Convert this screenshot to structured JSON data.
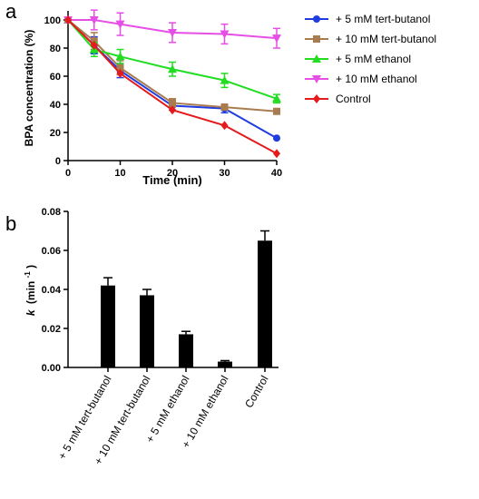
{
  "panels": {
    "a_label": "a",
    "b_label": "b"
  },
  "chart_data": [
    {
      "type": "line",
      "panel": "a",
      "xlabel": "Time (min)",
      "ylabel": "BPA concentration (%)",
      "xlim": [
        0,
        40
      ],
      "ylim": [
        0,
        100
      ],
      "xticks": [
        0,
        10,
        20,
        30,
        40
      ],
      "yticks": [
        0,
        20,
        40,
        60,
        80,
        100
      ],
      "x": [
        0,
        5,
        10,
        20,
        30,
        40
      ],
      "legend_position": "right",
      "series": [
        {
          "name": "+ 5 mM tert-butanol",
          "color": "#1f3de0",
          "marker": "circle",
          "values": [
            100,
            82,
            64,
            39,
            37,
            16
          ],
          "errors": [
            0,
            6,
            5,
            3,
            3,
            0
          ]
        },
        {
          "name": "+ 10 mM tert-butanol",
          "color": "#a97c50",
          "marker": "square",
          "values": [
            100,
            85,
            66,
            41,
            38,
            35
          ],
          "errors": [
            0,
            6,
            5,
            3,
            2,
            0
          ]
        },
        {
          "name": "+ 5 mM ethanol",
          "color": "#22dd22",
          "marker": "triangle-up",
          "values": [
            100,
            79,
            74,
            65,
            57,
            44
          ],
          "errors": [
            0,
            5,
            5,
            5,
            5,
            3
          ]
        },
        {
          "name": "+ 10 mM ethanol",
          "color": "#e54fe5",
          "marker": "triangle-down",
          "values": [
            100,
            100,
            97,
            91,
            90,
            87
          ],
          "errors": [
            2,
            7,
            8,
            7,
            7,
            7
          ]
        },
        {
          "name": "Control",
          "color": "#e41a1c",
          "marker": "diamond",
          "values": [
            100,
            82,
            62,
            36,
            25,
            5
          ],
          "errors": [
            0,
            0,
            0,
            0,
            0,
            0
          ]
        }
      ]
    },
    {
      "type": "bar",
      "panel": "b",
      "ylabel": "k",
      "ylabel_unit": "(min",
      "ylabel_sup": "-1",
      "ylabel_close": ")",
      "ylim": [
        0,
        0.08
      ],
      "yticks": [
        "0.00",
        "0.02",
        "0.04",
        "0.06",
        "0.08"
      ],
      "categories": [
        "+ 5 mM tert-butanol",
        "+ 10 mM tert-butanol",
        "+ 5 mM ethanol",
        "+ 10 mM ethanol",
        "Control"
      ],
      "values": [
        0.042,
        0.037,
        0.017,
        0.003,
        0.065
      ],
      "errors": [
        0.004,
        0.003,
        0.0015,
        0.0005,
        0.005
      ],
      "bar_color": "#000000"
    }
  ]
}
